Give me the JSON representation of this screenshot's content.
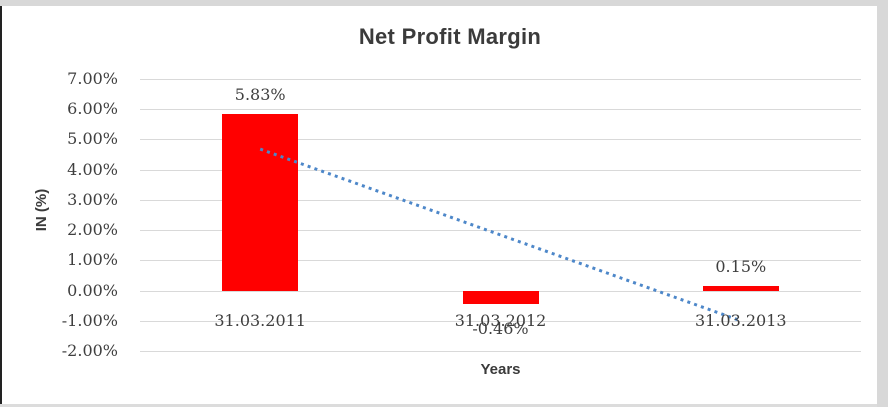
{
  "colors": {
    "bar": "#FF0000",
    "trendline": "#4D87C9",
    "gridline": "#D9D9D9",
    "text": "#3F3F3F",
    "frame_gray": "#D8D8D8"
  },
  "chart_data": {
    "type": "bar",
    "title": "Net Profit Margin",
    "xlabel": "Years",
    "ylabel": "IN (%)",
    "categories": [
      "31.03.2011",
      "31.03.2012",
      "31.03.2013"
    ],
    "values": [
      5.83,
      -0.46,
      0.15
    ],
    "data_labels": [
      "5.83%",
      "-0.46%",
      "0.15%"
    ],
    "ylim": [
      -2,
      7
    ],
    "ytick_step": 1,
    "ytick_labels": [
      "7.00%",
      "6.00%",
      "5.00%",
      "4.00%",
      "3.00%",
      "2.00%",
      "1.00%",
      "0.00%",
      "-1.00%",
      "-2.00%"
    ],
    "grid": true,
    "legend": "none",
    "bar_color": "#FF0000",
    "trendline": {
      "type": "linear",
      "style": "dotted",
      "color": "#4D87C9",
      "start": {
        "category_index": 0,
        "value": 4.68
      },
      "end": {
        "category_index": 2,
        "value": -1.0
      }
    }
  }
}
